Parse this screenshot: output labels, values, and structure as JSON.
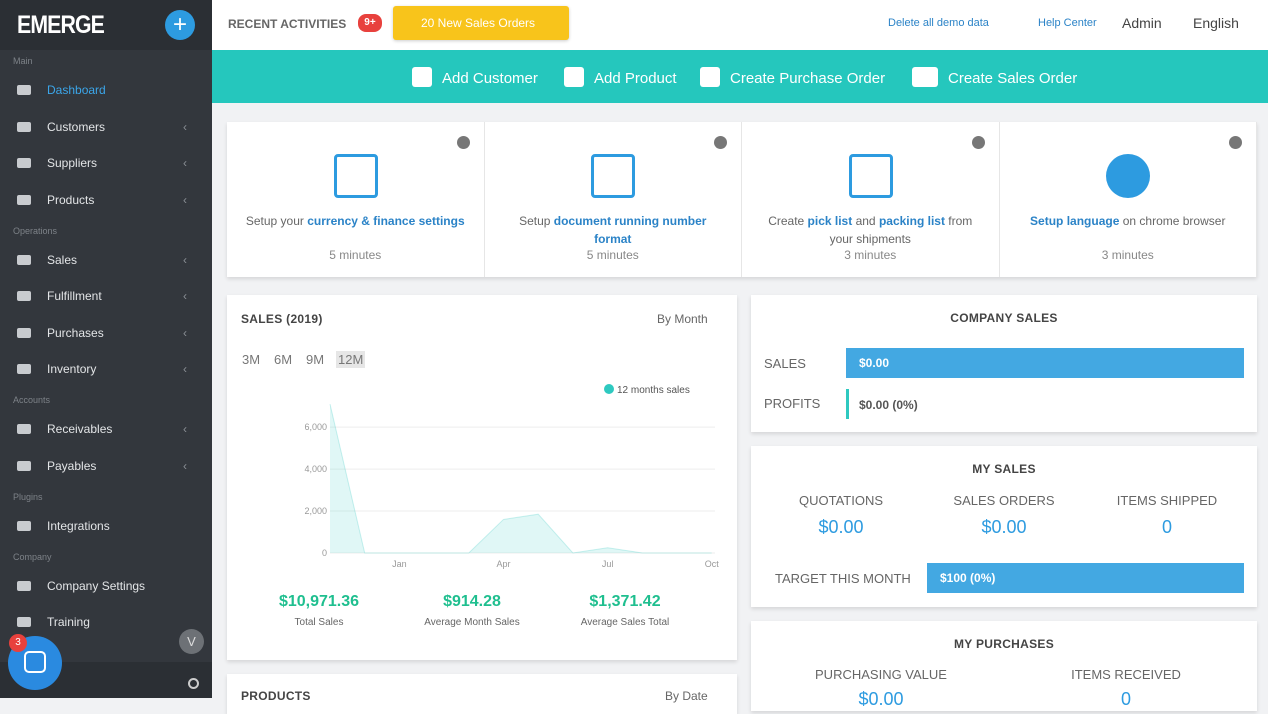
{
  "sidebar": {
    "logo": "EMERGE",
    "sections": [
      {
        "label": "Main",
        "items": [
          {
            "label": "Dashboard",
            "expandable": false
          },
          {
            "label": "Customers",
            "expandable": true
          },
          {
            "label": "Suppliers",
            "expandable": true
          },
          {
            "label": "Products",
            "expandable": true
          }
        ]
      },
      {
        "label": "Operations",
        "items": [
          {
            "label": "Sales",
            "expandable": true
          },
          {
            "label": "Fulfillment",
            "expandable": true
          },
          {
            "label": "Purchases",
            "expandable": true
          },
          {
            "label": "Inventory",
            "expandable": true
          }
        ]
      },
      {
        "label": "Accounts",
        "items": [
          {
            "label": "Receivables",
            "expandable": true
          },
          {
            "label": "Payables",
            "expandable": true
          }
        ]
      },
      {
        "label": "Plugins",
        "items": [
          {
            "label": "Integrations",
            "expandable": false
          }
        ]
      },
      {
        "label": "Company",
        "items": [
          {
            "label": "Company Settings",
            "expandable": false
          },
          {
            "label": "Training",
            "expandable": false
          }
        ]
      }
    ]
  },
  "header": {
    "recent": "RECENT ACTIVITIES",
    "badge": "9+",
    "alert": "20 New Sales Orders",
    "links": [
      "Delete all demo data",
      "Help Center"
    ],
    "user": "Admin",
    "language": "English"
  },
  "actions": [
    "Add Customer",
    "Add Product",
    "Create Purchase Order",
    "Create Sales Order"
  ],
  "setup_cards": [
    {
      "parts": [
        "Setup your ",
        "currency & finance settings"
      ],
      "time": "5 minutes"
    },
    {
      "parts": [
        "Setup ",
        "document running number format"
      ],
      "time": "5 minutes"
    },
    {
      "parts": [
        "Create ",
        "pick list",
        " and ",
        "packing list",
        " from your shipments"
      ],
      "time": "3 minutes"
    },
    {
      "parts": [
        "",
        "Setup language",
        " on chrome browser"
      ],
      "time": "3 minutes"
    }
  ],
  "sales": {
    "title": "SALES (2019)",
    "period": "By Month",
    "ranges": [
      "3M",
      "6M",
      "9M",
      "12M"
    ],
    "chart": {
      "type": "area",
      "series_name": "12 months sales",
      "color": "#2ec9c0",
      "categories": [
        null,
        null,
        "Jan",
        null,
        null,
        "Apr",
        null,
        null,
        "Jul",
        null,
        null,
        "Oct"
      ],
      "values": [
        7100,
        0,
        0,
        0,
        0,
        1600,
        1850,
        0,
        250,
        0,
        0,
        0
      ],
      "ylim": [
        0,
        7200
      ],
      "yticks": [
        0,
        {
          "value": 2000,
          "label": "2,000"
        },
        {
          "value": 4000,
          "label": "4,000"
        },
        {
          "value": 6000,
          "label": "6,000"
        }
      ]
    },
    "stats": [
      {
        "value": "$10,971.36",
        "label": "Total Sales"
      },
      {
        "value": "$914.28",
        "label": "Average Month Sales"
      },
      {
        "value": "$1,371.42",
        "label": "Average Sales Total"
      }
    ]
  },
  "company_sales": {
    "title": "COMPANY SALES",
    "rows": [
      {
        "label": "SALES",
        "value": "$0.00"
      },
      {
        "label": "PROFITS",
        "value": "$0.00 (0%)"
      }
    ]
  },
  "my_sales": {
    "title": "MY SALES",
    "metrics": [
      {
        "label": "QUOTATIONS",
        "value": "$0.00"
      },
      {
        "label": "SALES ORDERS",
        "value": "$0.00"
      },
      {
        "label": "ITEMS SHIPPED",
        "value": "0"
      }
    ],
    "target_label": "TARGET THIS MONTH",
    "target_value": "$100 (0%)"
  },
  "my_purchases": {
    "title": "MY PURCHASES",
    "metrics": [
      {
        "label": "PURCHASING VALUE",
        "value": "$0.00"
      },
      {
        "label": "ITEMS RECEIVED",
        "value": "0"
      }
    ]
  },
  "products": {
    "title": "PRODUCTS",
    "period": "By Date"
  },
  "chat_badge": "3"
}
